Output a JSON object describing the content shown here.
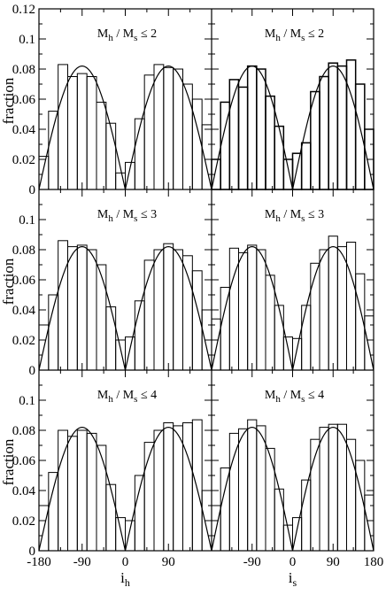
{
  "chart_data": {
    "type": "bar",
    "panel_rows": 3,
    "panel_cols": 2,
    "bin_edges": [
      -180,
      -160,
      -140,
      -120,
      -100,
      -80,
      -60,
      -40,
      -20,
      0,
      20,
      40,
      60,
      80,
      100,
      120,
      140,
      160,
      180
    ],
    "xlim": [
      -180,
      180
    ],
    "ylim": [
      0,
      0.12
    ],
    "x_ticks_left": [
      "-180",
      "-90",
      "0",
      "90"
    ],
    "x_ticks_right": [
      "-90",
      "0",
      "90",
      "180"
    ],
    "y_ticks": [
      "0",
      "0.02",
      "0.04",
      "0.06",
      "0.08",
      "0.1",
      "0.12"
    ],
    "y_ticks_inner": [
      "0",
      "0.02",
      "0.04",
      "0.06",
      "0.08",
      "0.1"
    ],
    "ylabel": "fraction",
    "xlabel_left": "i",
    "xlabel_left_sub": "h",
    "xlabel_right": "i",
    "xlabel_right_sub": "s",
    "panel_label_M": "M",
    "panel_label_h": "h",
    "panel_label_sep": " / M",
    "panel_label_s": "s",
    "model_curve": "0.082 * |sin(i)|",
    "panels": [
      {
        "row": 0,
        "col": 0,
        "label_value": "≤ 2",
        "values": [
          0.022,
          0.052,
          0.083,
          0.075,
          0.077,
          0.075,
          0.058,
          0.044,
          0.011,
          0.018,
          0.047,
          0.076,
          0.083,
          0.081,
          0.08,
          0.07,
          0.06,
          0.043
        ]
      },
      {
        "row": 0,
        "col": 1,
        "label_value": "≤ 2",
        "values": [
          0.02,
          0.058,
          0.073,
          0.068,
          0.082,
          0.08,
          0.062,
          0.042,
          0.02,
          0.024,
          0.031,
          0.065,
          0.075,
          0.084,
          0.082,
          0.086,
          0.07,
          0.04
        ]
      },
      {
        "row": 1,
        "col": 0,
        "label_value": "≤ 3",
        "values": [
          0.03,
          0.05,
          0.086,
          0.082,
          0.083,
          0.08,
          0.07,
          0.042,
          0.02,
          0.022,
          0.046,
          0.073,
          0.08,
          0.084,
          0.08,
          0.076,
          0.066,
          0.04
        ]
      },
      {
        "row": 1,
        "col": 1,
        "label_value": "≤ 3",
        "values": [
          0.034,
          0.055,
          0.081,
          0.078,
          0.083,
          0.08,
          0.063,
          0.043,
          0.022,
          0.021,
          0.043,
          0.071,
          0.08,
          0.089,
          0.082,
          0.085,
          0.064,
          0.036
        ]
      },
      {
        "row": 2,
        "col": 0,
        "label_value": "≤ 4",
        "values": [
          0.03,
          0.052,
          0.08,
          0.076,
          0.08,
          0.078,
          0.07,
          0.044,
          0.022,
          0.02,
          0.05,
          0.072,
          0.08,
          0.085,
          0.083,
          0.085,
          0.087,
          0.04
        ]
      },
      {
        "row": 2,
        "col": 1,
        "label_value": "≤ 4",
        "values": [
          0.03,
          0.055,
          0.078,
          0.081,
          0.087,
          0.083,
          0.068,
          0.041,
          0.017,
          0.022,
          0.047,
          0.074,
          0.082,
          0.084,
          0.084,
          0.074,
          0.06,
          0.037
        ]
      }
    ]
  }
}
